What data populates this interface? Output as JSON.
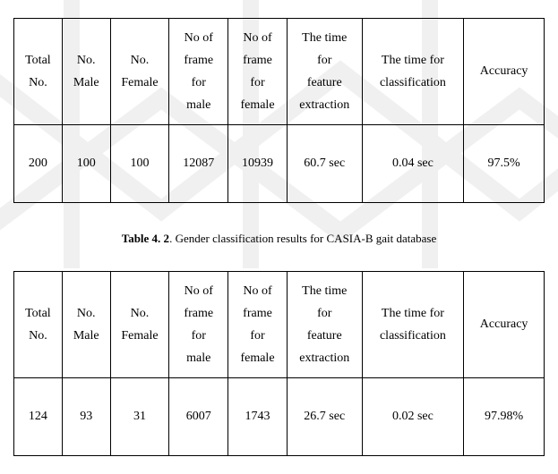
{
  "table1": {
    "headers": [
      "Total\nNo.",
      "No.\nMale",
      "No.\nFemale",
      "No of\nframe\nfor\nmale",
      "No of\nframe\nfor\nfemale",
      "The time\nfor\nfeature\nextraction",
      "The time for\nclassification",
      "Accuracy"
    ],
    "row": [
      "200",
      "100",
      "100",
      "12087",
      "10939",
      "60.7 sec",
      "0.04 sec",
      "97.5%"
    ]
  },
  "caption": {
    "label": "Table 4. 2",
    "text": ". Gender classification results for CASIA-B gait database"
  },
  "table2": {
    "headers": [
      "Total\nNo.",
      "No.\nMale",
      "No.\nFemale",
      "No of\nframe\nfor\nmale",
      "No of\nframe\nfor\nfemale",
      "The time\nfor\nfeature\nextraction",
      "The time for\nclassification",
      "Accuracy"
    ],
    "row": [
      "124",
      "93",
      "31",
      "6007",
      "1743",
      "26.7 sec",
      "0.02 sec",
      "97.98%"
    ]
  }
}
